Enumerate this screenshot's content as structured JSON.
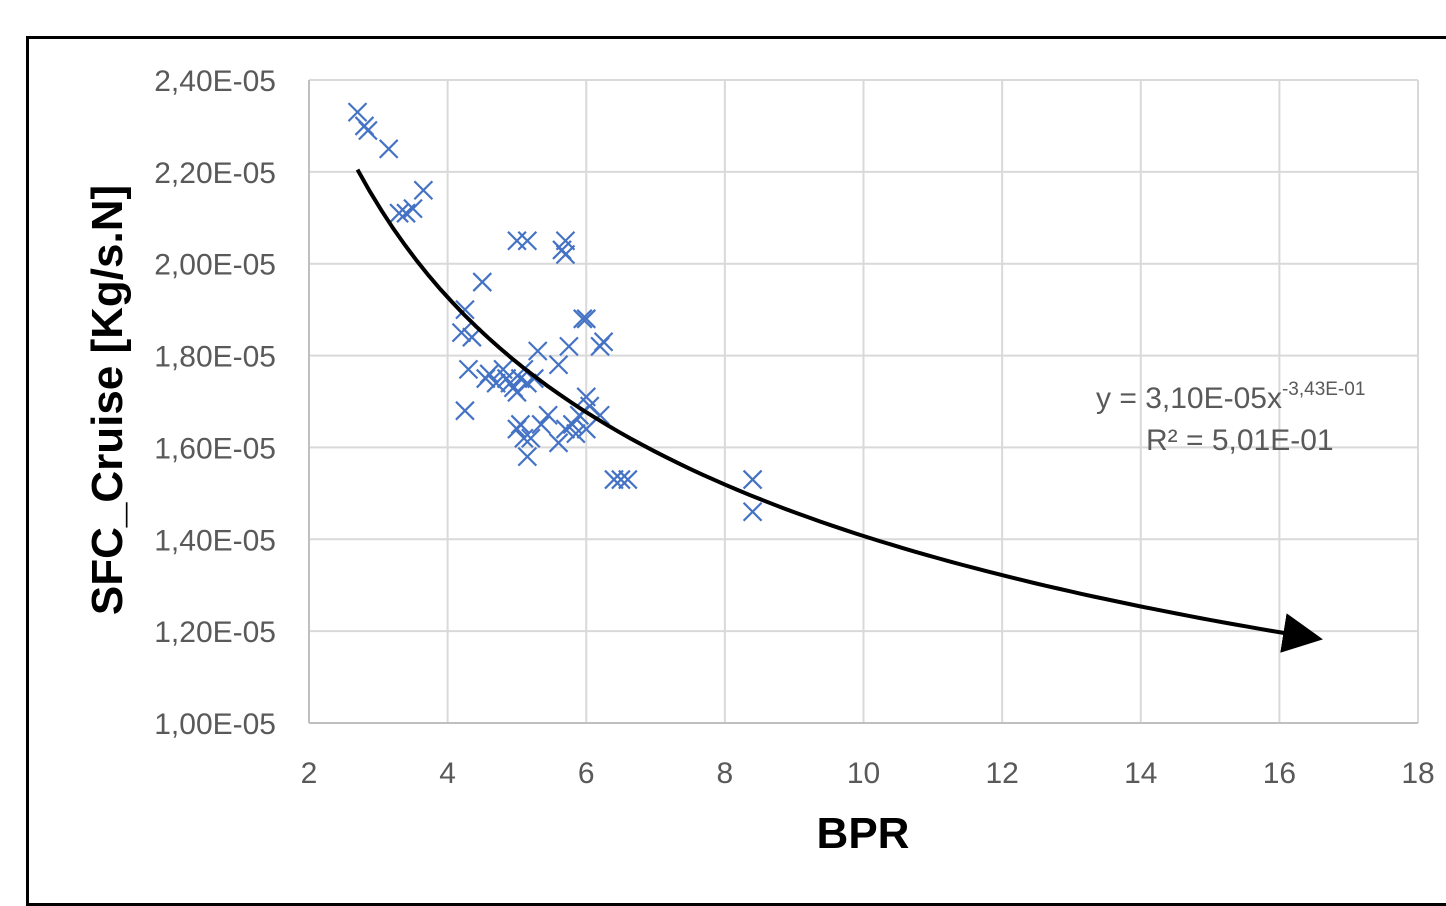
{
  "chart_data": {
    "type": "scatter",
    "title": "",
    "xlabel": "BPR",
    "ylabel": "SFC_Cruise [Kg/s.N]",
    "xlim": [
      2,
      18
    ],
    "ylim": [
      1e-05,
      2.4e-05
    ],
    "x_ticks": [
      2,
      4,
      6,
      8,
      10,
      12,
      14,
      16,
      18
    ],
    "x_tick_labels": [
      "2",
      "4",
      "6",
      "8",
      "10",
      "12",
      "14",
      "16",
      "18"
    ],
    "y_ticks": [
      1e-05,
      1.2e-05,
      1.4e-05,
      1.6e-05,
      1.8e-05,
      2e-05,
      2.2e-05,
      2.4e-05
    ],
    "y_tick_labels": [
      "1,00E-05",
      "1,20E-05",
      "1,40E-05",
      "1,60E-05",
      "1,80E-05",
      "2,00E-05",
      "2,20E-05",
      "2,40E-05"
    ],
    "grid": true,
    "marker": "x",
    "marker_color": "#4472C4",
    "points": [
      [
        2.7,
        2.33e-05
      ],
      [
        2.8,
        2.3e-05
      ],
      [
        2.85,
        2.29e-05
      ],
      [
        3.15,
        2.25e-05
      ],
      [
        3.3,
        2.11e-05
      ],
      [
        3.4,
        2.11e-05
      ],
      [
        3.5,
        2.12e-05
      ],
      [
        3.65,
        2.16e-05
      ],
      [
        4.25,
        1.9e-05
      ],
      [
        4.2,
        1.85e-05
      ],
      [
        4.35,
        1.84e-05
      ],
      [
        4.5,
        1.96e-05
      ],
      [
        4.3,
        1.77e-05
      ],
      [
        4.25,
        1.68e-05
      ],
      [
        4.6,
        1.76e-05
      ],
      [
        4.55,
        1.75e-05
      ],
      [
        4.7,
        1.74e-05
      ],
      [
        4.8,
        1.77e-05
      ],
      [
        4.85,
        1.75e-05
      ],
      [
        4.9,
        1.74e-05
      ],
      [
        4.95,
        1.73e-05
      ],
      [
        5.0,
        1.72e-05
      ],
      [
        5.05,
        1.75e-05
      ],
      [
        5.1,
        1.77e-05
      ],
      [
        5.15,
        1.74e-05
      ],
      [
        5.25,
        1.75e-05
      ],
      [
        5.3,
        1.81e-05
      ],
      [
        5.0,
        2.05e-05
      ],
      [
        5.15,
        2.05e-05
      ],
      [
        5.0,
        1.64e-05
      ],
      [
        5.1,
        1.62e-05
      ],
      [
        5.15,
        1.58e-05
      ],
      [
        5.2,
        1.62e-05
      ],
      [
        5.05,
        1.65e-05
      ],
      [
        5.35,
        1.65e-05
      ],
      [
        5.45,
        1.67e-05
      ],
      [
        5.6,
        1.61e-05
      ],
      [
        5.6,
        1.78e-05
      ],
      [
        5.75,
        1.82e-05
      ],
      [
        5.65,
        2.03e-05
      ],
      [
        5.7,
        2.05e-05
      ],
      [
        5.7,
        2.02e-05
      ],
      [
        5.7,
        1.64e-05
      ],
      [
        5.8,
        1.65e-05
      ],
      [
        5.85,
        1.63e-05
      ],
      [
        5.9,
        1.67e-05
      ],
      [
        5.95,
        1.88e-05
      ],
      [
        6.0,
        1.88e-05
      ],
      [
        6.0,
        1.71e-05
      ],
      [
        6.05,
        1.69e-05
      ],
      [
        6.0,
        1.64e-05
      ],
      [
        6.2,
        1.67e-05
      ],
      [
        6.2,
        1.82e-05
      ],
      [
        6.25,
        1.83e-05
      ],
      [
        6.4,
        1.53e-05
      ],
      [
        6.5,
        1.53e-05
      ],
      [
        6.6,
        1.53e-05
      ],
      [
        8.4,
        1.53e-05
      ],
      [
        8.4,
        1.46e-05
      ]
    ],
    "trendline": {
      "type": "power",
      "coefficient": 3.1e-05,
      "exponent": -0.343,
      "x_range": [
        2.7,
        16.4
      ],
      "equation_text": "y = 3,10E-05x",
      "equation_exponent": "-3,43E-01",
      "r2_text": "R² = 5,01E-01"
    }
  }
}
